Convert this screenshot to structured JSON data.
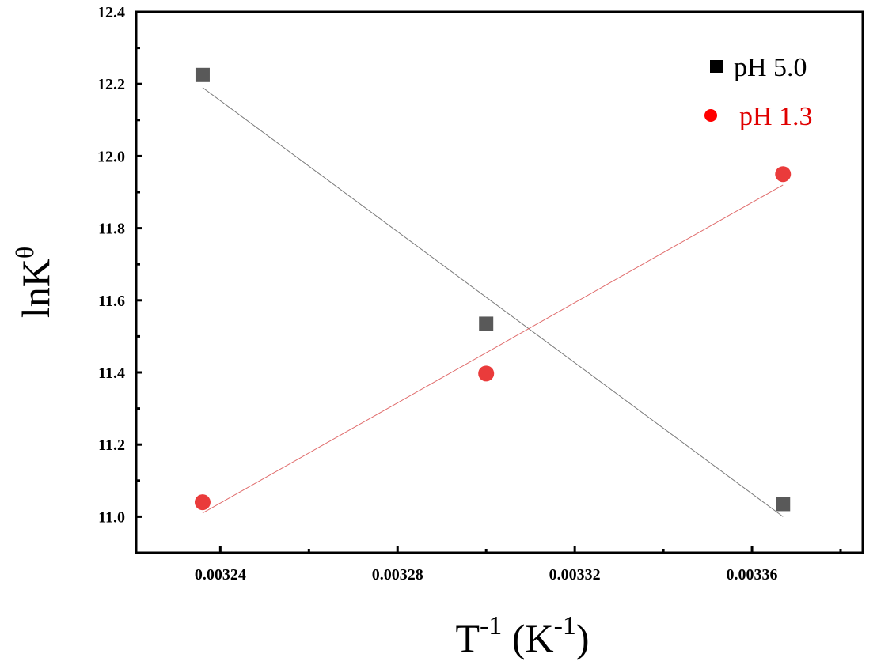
{
  "chart_data": {
    "type": "scatter",
    "title": "",
    "xlabel": {
      "base": "T",
      "sup": "-1",
      "unit_open": " (K",
      "unit_sup": "-1",
      "unit_close": ")"
    },
    "ylabel": {
      "base": "lnK",
      "sup": "θ"
    },
    "xlim": [
      0.003221,
      0.003385
    ],
    "ylim": [
      10.9,
      12.4
    ],
    "x_ticks": [
      0.00324,
      0.00328,
      0.00332,
      0.00336
    ],
    "x_tick_labels": [
      "0.00324",
      "0.00328",
      "0.00332",
      "0.00336"
    ],
    "y_ticks": [
      11.0,
      11.2,
      11.4,
      11.6,
      11.8,
      12.0,
      12.2,
      12.4
    ],
    "y_tick_labels": [
      "11.0",
      "11.2",
      "11.4",
      "11.6",
      "11.8",
      "12.0",
      "12.2",
      "12.4"
    ],
    "legend_position": "top-right",
    "series": [
      {
        "name": "pH 5.0",
        "marker": "square",
        "color": "#595959",
        "legend_marker_color": "#000000",
        "legend_text_color": "#000000",
        "line_color": "#7a7a7a",
        "x": [
          0.003236,
          0.0033,
          0.003367
        ],
        "y": [
          12.225,
          11.535,
          11.035
        ],
        "fit": {
          "x": [
            0.003236,
            0.003367
          ],
          "y": [
            12.19,
            11.0
          ]
        }
      },
      {
        "name": "pH 1.3",
        "marker": "circle",
        "color": "#ea3b3b",
        "legend_marker_color": "#ff0000",
        "legend_text_color": "#e00000",
        "line_color": "#e06b6b",
        "x": [
          0.003236,
          0.0033,
          0.003367
        ],
        "y": [
          11.04,
          11.397,
          11.95
        ],
        "fit": {
          "x": [
            0.003236,
            0.003367
          ],
          "y": [
            11.01,
            11.92
          ]
        }
      }
    ]
  }
}
